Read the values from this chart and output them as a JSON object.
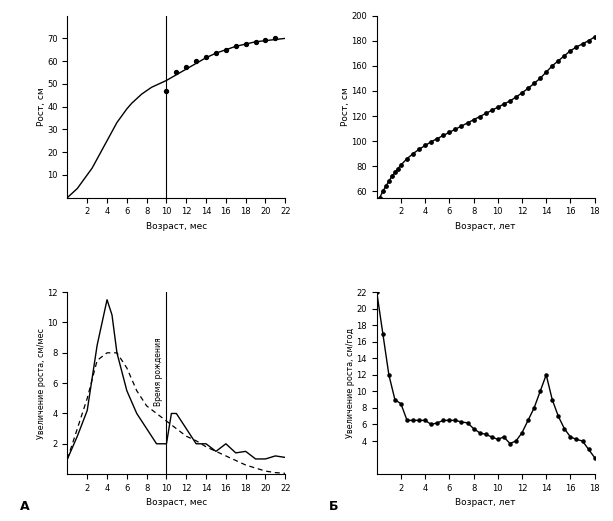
{
  "top_left": {
    "xlabel": "Возраст, мес",
    "ylabel": "Рост, см",
    "xlim": [
      0,
      22
    ],
    "ylim": [
      0,
      80
    ],
    "xticks": [
      2,
      4,
      6,
      8,
      10,
      12,
      14,
      16,
      18,
      20,
      22
    ],
    "yticks": [
      10,
      20,
      30,
      40,
      50,
      60,
      70
    ],
    "vline_x": 10,
    "curve_x": [
      0,
      0.5,
      1,
      1.5,
      2,
      2.5,
      3,
      3.5,
      4,
      4.5,
      5,
      5.5,
      6,
      6.5,
      7,
      7.5,
      8,
      8.5,
      9,
      9.5,
      10,
      11,
      12,
      13,
      14,
      15,
      16,
      17,
      18,
      19,
      20,
      21,
      22
    ],
    "curve_y": [
      0,
      2,
      4,
      7,
      10,
      13,
      17,
      21,
      25,
      29,
      33,
      36,
      39,
      41.5,
      43.5,
      45.5,
      47,
      48.5,
      49.5,
      50.5,
      51.5,
      54,
      56.5,
      59,
      61.5,
      63.5,
      65,
      66.5,
      67.5,
      68.5,
      69,
      69.5,
      70
    ],
    "dots_x": [
      10,
      11,
      12,
      13,
      14,
      15,
      16,
      17,
      18,
      19,
      20,
      21
    ],
    "dots_y": [
      47,
      55,
      57.5,
      60,
      62,
      63.5,
      65,
      66.5,
      67.5,
      68.5,
      69.2,
      70
    ],
    "label_A": "А"
  },
  "top_right": {
    "xlabel": "Возраст, лет",
    "ylabel": "Рост, см",
    "xlim": [
      0,
      18
    ],
    "ylim": [
      55,
      200
    ],
    "xticks": [
      2,
      4,
      6,
      8,
      10,
      12,
      14,
      16,
      18
    ],
    "yticks": [
      60,
      80,
      100,
      120,
      140,
      160,
      180,
      200
    ],
    "curve_x": [
      0,
      0.25,
      0.5,
      0.75,
      1,
      1.25,
      1.5,
      1.75,
      2,
      2.5,
      3,
      3.5,
      4,
      4.5,
      5,
      5.5,
      6,
      6.5,
      7,
      7.5,
      8,
      8.5,
      9,
      9.5,
      10,
      10.5,
      11,
      11.5,
      12,
      12.5,
      13,
      13.5,
      14,
      14.5,
      15,
      15.5,
      16,
      16.5,
      17,
      17.5,
      18
    ],
    "curve_y": [
      50,
      55,
      60,
      64,
      68,
      72,
      75,
      78,
      81,
      86,
      90,
      93.5,
      96.5,
      99.5,
      102,
      104.5,
      107,
      109.5,
      112,
      114.5,
      117,
      119.5,
      122,
      124.5,
      127,
      129.5,
      132,
      135,
      138.5,
      142,
      146,
      150,
      155,
      160,
      164,
      168,
      172,
      175,
      177.5,
      180,
      183
    ],
    "dots_x": [
      0.25,
      0.5,
      0.75,
      1,
      1.25,
      1.5,
      1.75,
      2,
      2.5,
      3,
      3.5,
      4,
      4.5,
      5,
      5.5,
      6,
      6.5,
      7,
      7.5,
      8,
      8.5,
      9,
      9.5,
      10,
      10.5,
      11,
      11.5,
      12,
      12.5,
      13,
      13.5,
      14,
      14.5,
      15,
      15.5,
      16,
      16.5,
      17,
      17.5,
      18
    ],
    "dots_y": [
      55,
      60,
      64,
      68,
      72,
      75,
      78,
      81,
      86,
      90,
      93.5,
      96.5,
      99.5,
      102,
      104.5,
      107,
      109.5,
      112,
      114.5,
      117,
      119.5,
      122,
      124.5,
      127,
      129.5,
      132,
      135,
      138.5,
      142,
      146,
      150,
      155,
      160,
      164,
      168,
      172,
      175,
      177.5,
      180,
      183
    ]
  },
  "bottom_left": {
    "xlabel": "Возраст, мес",
    "ylabel": "Увеличение роста, см/мес",
    "xlim": [
      0,
      22
    ],
    "ylim": [
      0,
      12
    ],
    "xticks": [
      2,
      4,
      6,
      8,
      10,
      12,
      14,
      16,
      18,
      20,
      22
    ],
    "yticks": [
      2,
      4,
      6,
      8,
      10,
      12
    ],
    "vline_x": 10,
    "vline_label": "Время рождения",
    "solid_x": [
      0,
      1,
      2,
      3,
      4,
      4.5,
      5,
      6,
      7,
      8,
      9,
      10,
      10.5,
      11,
      12,
      13,
      14,
      15,
      16,
      17,
      18,
      19,
      20,
      21,
      22
    ],
    "solid_y": [
      1,
      2.5,
      4.2,
      8.5,
      11.5,
      10.5,
      8,
      5.5,
      4,
      3,
      2,
      2,
      4,
      4,
      3,
      2,
      2,
      1.5,
      2,
      1.4,
      1.5,
      1,
      1,
      1.2,
      1.1
    ],
    "dashed_x": [
      0,
      1,
      2,
      3,
      4,
      5,
      6,
      7,
      8,
      9,
      10,
      11,
      12,
      13,
      14,
      15,
      16,
      17,
      18,
      19,
      20,
      21,
      22
    ],
    "dashed_y": [
      1,
      3,
      5,
      7.5,
      8,
      8,
      7,
      5.5,
      4.5,
      4,
      3.5,
      3,
      2.5,
      2.2,
      1.8,
      1.5,
      1.2,
      0.9,
      0.6,
      0.4,
      0.2,
      0.1,
      0.05
    ],
    "label": "А"
  },
  "bottom_right": {
    "xlabel": "Возраст, лет",
    "ylabel": "Увеличение роста, см/год",
    "xlim": [
      0,
      18
    ],
    "ylim": [
      0,
      22
    ],
    "xticks": [
      2,
      4,
      6,
      8,
      10,
      12,
      14,
      16,
      18
    ],
    "yticks": [
      4,
      6,
      8,
      10,
      12,
      14,
      16,
      18,
      20,
      22
    ],
    "solid_x": [
      0,
      0.5,
      1,
      1.5,
      2,
      2.5,
      3,
      3.5,
      4,
      4.5,
      5,
      5.5,
      6,
      6.5,
      7,
      7.5,
      8,
      8.5,
      9,
      9.5,
      10,
      10.5,
      11,
      11.5,
      12,
      12.5,
      13,
      13.5,
      14,
      14.5,
      15,
      15.5,
      16,
      16.5,
      17,
      17.5,
      18
    ],
    "solid_y": [
      22,
      17,
      12,
      9,
      8.5,
      6.5,
      6.5,
      6.5,
      6.5,
      6,
      6.2,
      6.5,
      6.5,
      6.5,
      6.3,
      6.2,
      5.5,
      5,
      4.8,
      4.5,
      4.2,
      4.5,
      3.7,
      4,
      5,
      6.5,
      8,
      10,
      12,
      9,
      7,
      5.5,
      4.5,
      4.2,
      4,
      3,
      2
    ],
    "label": "Б"
  },
  "background_color": "#ffffff",
  "line_color": "#000000"
}
